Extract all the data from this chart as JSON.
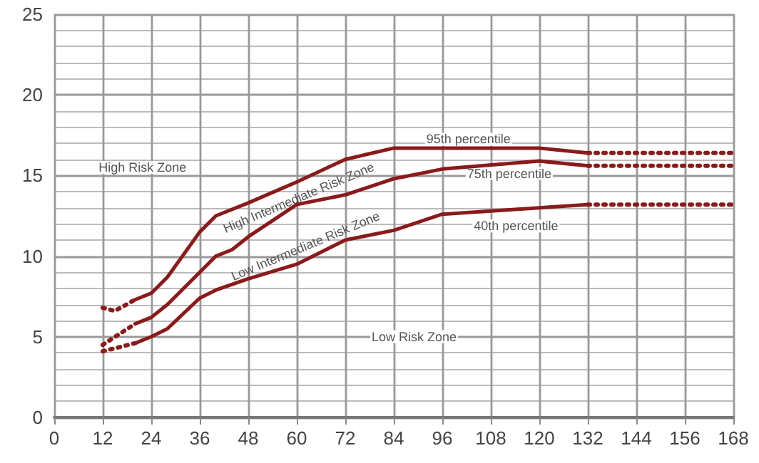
{
  "chart_data": {
    "type": "line",
    "series": [
      {
        "color": "#8b1a1a",
        "x": [
          20,
          24,
          28,
          36,
          40,
          48,
          60,
          72,
          84,
          120,
          132
        ],
        "values": [
          7.3,
          7.7,
          8.7,
          11.5,
          12.5,
          13.3,
          14.6,
          16.0,
          16.7,
          16.7,
          16.4
        ]
      },
      {
        "color": "#8b1a1a",
        "x": [
          20,
          24,
          28,
          36,
          40,
          44,
          48,
          60,
          72,
          84,
          96,
          120,
          132
        ],
        "values": [
          5.8,
          6.2,
          7.0,
          9.0,
          10.0,
          10.4,
          11.2,
          13.2,
          13.8,
          14.8,
          15.4,
          15.9,
          15.6
        ]
      },
      {
        "color": "#8b1a1a",
        "x": [
          20,
          24,
          28,
          36,
          40,
          48,
          60,
          72,
          84,
          96,
          120,
          132
        ],
        "values": [
          4.6,
          5.0,
          5.5,
          7.4,
          7.9,
          8.6,
          9.5,
          11.0,
          11.6,
          12.6,
          13.0,
          13.2
        ]
      },
      {
        "color": "#8b1a1a",
        "line_style": "dotted",
        "x": [
          12,
          15,
          20
        ],
        "values": [
          6.8,
          6.6,
          7.3
        ]
      },
      {
        "color": "#8b1a1a",
        "line_style": "dotted",
        "x": [
          12,
          20
        ],
        "values": [
          4.5,
          5.8
        ]
      },
      {
        "color": "#8b1a1a",
        "line_style": "dotted",
        "x": [
          12,
          20
        ],
        "values": [
          4.1,
          4.6
        ]
      },
      {
        "color": "#8b1a1a",
        "line_style": "dotted",
        "x": [
          132,
          168
        ],
        "values": [
          16.4,
          16.4
        ]
      },
      {
        "color": "#8b1a1a",
        "line_style": "dotted",
        "x": [
          132,
          168
        ],
        "values": [
          15.6,
          15.6
        ]
      },
      {
        "color": "#8b1a1a",
        "line_style": "dotted",
        "x": [
          132,
          168
        ],
        "values": [
          13.2,
          13.2
        ]
      }
    ],
    "xlim": [
      0,
      168
    ],
    "xticks": [
      0,
      12,
      24,
      36,
      48,
      60,
      72,
      84,
      96,
      108,
      120,
      132,
      144,
      156,
      168
    ],
    "ylim": [
      0,
      25
    ],
    "yticks": [
      0,
      5,
      10,
      15,
      20,
      25
    ],
    "grid": true,
    "marker": "none",
    "line_style": "solid",
    "annotations": [
      "High Risk Zone",
      "High Intermediate Risk Zone",
      "Low Intermediate Risk Zone",
      "Low Risk Zone",
      "95th percentile",
      "75th percentile",
      "40th percentile"
    ]
  }
}
